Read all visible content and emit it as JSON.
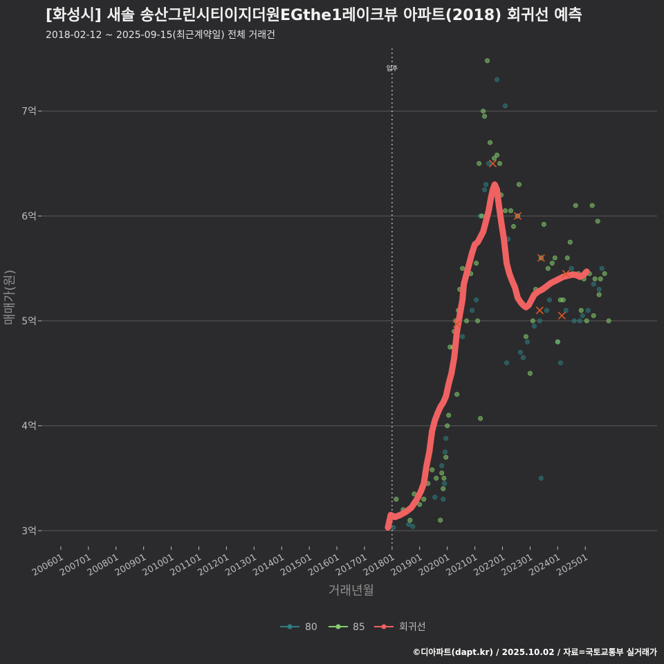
{
  "header": {
    "title": "[화성시] 새솔 송산그린시티이지더원EGthe1레이크뷰 아파트(2018) 회귀선 예측",
    "subtitle": "2018-02-12 ~ 2025-09-15(최근계약일) 전체 거래건"
  },
  "footer": {
    "credit": "©디아파트(dapt.kr) / 2025.10.02 / 자료=국토교통부 실거래가"
  },
  "colors": {
    "background": "#2b2b2d",
    "grid": "#5a5a5a",
    "series80": "#2f7f82",
    "series85": "#86cf6e",
    "regression": "#f06262",
    "marker": "#d9582b"
  },
  "chart_data": {
    "type": "scatter",
    "xlabel": "거래년월",
    "ylabel": "매매가(원)",
    "xlim": [
      2005.3,
      2027.6
    ],
    "ylim": [
      2.85,
      7.65
    ],
    "x_ticks": [
      {
        "label": "200601",
        "x": 2006.0
      },
      {
        "label": "200701",
        "x": 2007.0
      },
      {
        "label": "200801",
        "x": 2008.0
      },
      {
        "label": "200901",
        "x": 2009.0
      },
      {
        "label": "201001",
        "x": 2010.0
      },
      {
        "label": "201101",
        "x": 2011.0
      },
      {
        "label": "201201",
        "x": 2012.0
      },
      {
        "label": "201301",
        "x": 2013.0
      },
      {
        "label": "201401",
        "x": 2014.0
      },
      {
        "label": "201501",
        "x": 2015.0
      },
      {
        "label": "201601",
        "x": 2016.0
      },
      {
        "label": "201701",
        "x": 2017.0
      },
      {
        "label": "201801",
        "x": 2018.0
      },
      {
        "label": "201901",
        "x": 2019.0
      },
      {
        "label": "202001",
        "x": 2020.0
      },
      {
        "label": "202101",
        "x": 2021.0
      },
      {
        "label": "202201",
        "x": 2022.0
      },
      {
        "label": "202301",
        "x": 2023.0
      },
      {
        "label": "202401",
        "x": 2024.0
      },
      {
        "label": "202501",
        "x": 2025.0
      }
    ],
    "y_ticks": [
      {
        "label": "3억",
        "y": 3
      },
      {
        "label": "4억",
        "y": 4
      },
      {
        "label": "5억",
        "y": 5
      },
      {
        "label": "6억",
        "y": 6
      },
      {
        "label": "7억",
        "y": 7
      }
    ],
    "annotations": [
      {
        "text": "입주",
        "x": 2018.0
      }
    ],
    "series": [
      {
        "name": "80",
        "points": [
          [
            2018.05,
            3.03
          ],
          [
            2018.6,
            3.06
          ],
          [
            2018.75,
            3.04
          ],
          [
            2019.55,
            3.32
          ],
          [
            2019.8,
            3.62
          ],
          [
            2019.85,
            3.3
          ],
          [
            2019.9,
            3.45
          ],
          [
            2019.92,
            3.75
          ],
          [
            2019.95,
            3.88
          ],
          [
            2020.55,
            4.85
          ],
          [
            2020.9,
            5.1
          ],
          [
            2021.05,
            5.2
          ],
          [
            2021.35,
            6.25
          ],
          [
            2021.4,
            6.3
          ],
          [
            2021.5,
            6.5
          ],
          [
            2021.2,
            6.0
          ],
          [
            2021.8,
            7.3
          ],
          [
            2022.1,
            7.05
          ],
          [
            2022.15,
            4.6
          ],
          [
            2022.2,
            5.78
          ],
          [
            2022.65,
            4.7
          ],
          [
            2022.75,
            4.65
          ],
          [
            2022.9,
            4.8
          ],
          [
            2023.15,
            4.95
          ],
          [
            2023.35,
            5.0
          ],
          [
            2023.4,
            3.5
          ],
          [
            2023.6,
            5.1
          ],
          [
            2023.7,
            5.2
          ],
          [
            2024.0,
            4.8
          ],
          [
            2024.1,
            4.6
          ],
          [
            2024.3,
            5.1
          ],
          [
            2024.5,
            5.5
          ],
          [
            2024.6,
            5.0
          ],
          [
            2024.8,
            5.0
          ],
          [
            2024.9,
            5.05
          ],
          [
            2025.1,
            5.1
          ],
          [
            2025.3,
            5.35
          ],
          [
            2025.5,
            5.3
          ],
          [
            2025.6,
            5.5
          ]
        ]
      },
      {
        "name": "85",
        "points": [
          [
            2018.15,
            3.3
          ],
          [
            2018.4,
            3.2
          ],
          [
            2018.65,
            3.1
          ],
          [
            2018.8,
            3.35
          ],
          [
            2019.0,
            3.25
          ],
          [
            2019.15,
            3.3
          ],
          [
            2019.3,
            3.45
          ],
          [
            2019.45,
            3.58
          ],
          [
            2019.6,
            3.5
          ],
          [
            2019.75,
            3.1
          ],
          [
            2019.8,
            3.55
          ],
          [
            2019.85,
            3.4
          ],
          [
            2019.88,
            3.5
          ],
          [
            2019.95,
            3.7
          ],
          [
            2020.0,
            4.0
          ],
          [
            2020.05,
            4.1
          ],
          [
            2020.15,
            4.5
          ],
          [
            2020.2,
            4.75
          ],
          [
            2020.25,
            4.9
          ],
          [
            2020.3,
            5.0
          ],
          [
            2020.35,
            4.3
          ],
          [
            2020.45,
            5.3
          ],
          [
            2020.55,
            5.5
          ],
          [
            2020.7,
            5.0
          ],
          [
            2020.85,
            5.45
          ],
          [
            2021.05,
            5.55
          ],
          [
            2021.1,
            5.0
          ],
          [
            2021.15,
            6.5
          ],
          [
            2021.25,
            6.0
          ],
          [
            2021.3,
            7.0
          ],
          [
            2021.35,
            6.95
          ],
          [
            2021.45,
            7.48
          ],
          [
            2021.55,
            6.7
          ],
          [
            2021.7,
            6.55
          ],
          [
            2021.8,
            6.58
          ],
          [
            2021.9,
            6.5
          ],
          [
            2021.95,
            6.2
          ],
          [
            2022.1,
            6.05
          ],
          [
            2022.3,
            6.05
          ],
          [
            2022.4,
            5.9
          ],
          [
            2022.55,
            6.0
          ],
          [
            2022.6,
            6.3
          ],
          [
            2022.85,
            4.85
          ],
          [
            2023.0,
            4.5
          ],
          [
            2023.1,
            5.0
          ],
          [
            2023.2,
            5.3
          ],
          [
            2023.4,
            5.6
          ],
          [
            2023.5,
            5.92
          ],
          [
            2023.65,
            5.5
          ],
          [
            2023.8,
            5.55
          ],
          [
            2023.9,
            5.6
          ],
          [
            2024.0,
            4.8
          ],
          [
            2024.1,
            5.2
          ],
          [
            2024.2,
            5.2
          ],
          [
            2024.35,
            5.6
          ],
          [
            2024.45,
            5.75
          ],
          [
            2024.55,
            5.45
          ],
          [
            2024.65,
            6.1
          ],
          [
            2024.75,
            5.45
          ],
          [
            2024.85,
            5.1
          ],
          [
            2024.95,
            5.4
          ],
          [
            2025.05,
            5.0
          ],
          [
            2025.15,
            5.45
          ],
          [
            2025.25,
            6.1
          ],
          [
            2025.3,
            5.05
          ],
          [
            2025.35,
            5.4
          ],
          [
            2025.45,
            5.95
          ],
          [
            2025.5,
            5.25
          ],
          [
            2025.55,
            5.4
          ],
          [
            2025.7,
            5.45
          ],
          [
            2025.85,
            5.0
          ],
          [
            2021.2,
            4.07
          ],
          [
            2020.1,
            4.75
          ],
          [
            2020.4,
            5.1
          ],
          [
            2020.6,
            5.3
          ]
        ]
      }
    ],
    "regression": {
      "name": "회귀선",
      "points": [
        [
          2017.85,
          3.03
        ],
        [
          2017.95,
          3.15
        ],
        [
          2018.1,
          3.13
        ],
        [
          2018.3,
          3.15
        ],
        [
          2018.5,
          3.18
        ],
        [
          2018.7,
          3.22
        ],
        [
          2018.9,
          3.3
        ],
        [
          2019.05,
          3.38
        ],
        [
          2019.15,
          3.45
        ],
        [
          2019.25,
          3.62
        ],
        [
          2019.35,
          3.75
        ],
        [
          2019.45,
          3.95
        ],
        [
          2019.55,
          4.05
        ],
        [
          2019.65,
          4.12
        ],
        [
          2019.75,
          4.18
        ],
        [
          2019.85,
          4.22
        ],
        [
          2019.95,
          4.28
        ],
        [
          2020.05,
          4.4
        ],
        [
          2020.15,
          4.5
        ],
        [
          2020.25,
          4.65
        ],
        [
          2020.35,
          4.9
        ],
        [
          2020.45,
          5.05
        ],
        [
          2020.55,
          5.2
        ],
        [
          2020.6,
          5.35
        ],
        [
          2020.7,
          5.45
        ],
        [
          2020.8,
          5.55
        ],
        [
          2020.9,
          5.65
        ],
        [
          2021.0,
          5.73
        ],
        [
          2021.1,
          5.75
        ],
        [
          2021.2,
          5.8
        ],
        [
          2021.3,
          5.85
        ],
        [
          2021.4,
          5.95
        ],
        [
          2021.5,
          6.05
        ],
        [
          2021.58,
          6.17
        ],
        [
          2021.65,
          6.25
        ],
        [
          2021.72,
          6.3
        ],
        [
          2021.8,
          6.25
        ],
        [
          2021.87,
          6.1
        ],
        [
          2021.95,
          5.95
        ],
        [
          2022.05,
          5.78
        ],
        [
          2022.15,
          5.55
        ],
        [
          2022.25,
          5.45
        ],
        [
          2022.35,
          5.38
        ],
        [
          2022.45,
          5.32
        ],
        [
          2022.55,
          5.22
        ],
        [
          2022.65,
          5.18
        ],
        [
          2022.75,
          5.15
        ],
        [
          2022.85,
          5.13
        ],
        [
          2022.95,
          5.15
        ],
        [
          2023.05,
          5.2
        ],
        [
          2023.15,
          5.25
        ],
        [
          2023.3,
          5.28
        ],
        [
          2023.45,
          5.3
        ],
        [
          2023.6,
          5.33
        ],
        [
          2023.75,
          5.36
        ],
        [
          2023.9,
          5.38
        ],
        [
          2024.05,
          5.4
        ],
        [
          2024.2,
          5.42
        ],
        [
          2024.35,
          5.43
        ],
        [
          2024.5,
          5.44
        ],
        [
          2024.65,
          5.44
        ],
        [
          2024.8,
          5.42
        ],
        [
          2024.95,
          5.44
        ],
        [
          2025.05,
          5.47
        ]
      ]
    },
    "highlight_markers": [
      [
        2020.35,
        4.97
      ],
      [
        2021.65,
        6.5
      ],
      [
        2022.55,
        6.0
      ],
      [
        2023.4,
        5.6
      ],
      [
        2023.35,
        5.1
      ],
      [
        2024.15,
        5.05
      ],
      [
        2024.3,
        5.45
      ]
    ],
    "legend": {
      "placement": "bottom",
      "entries": [
        "80",
        "85",
        "회귀선"
      ]
    }
  }
}
